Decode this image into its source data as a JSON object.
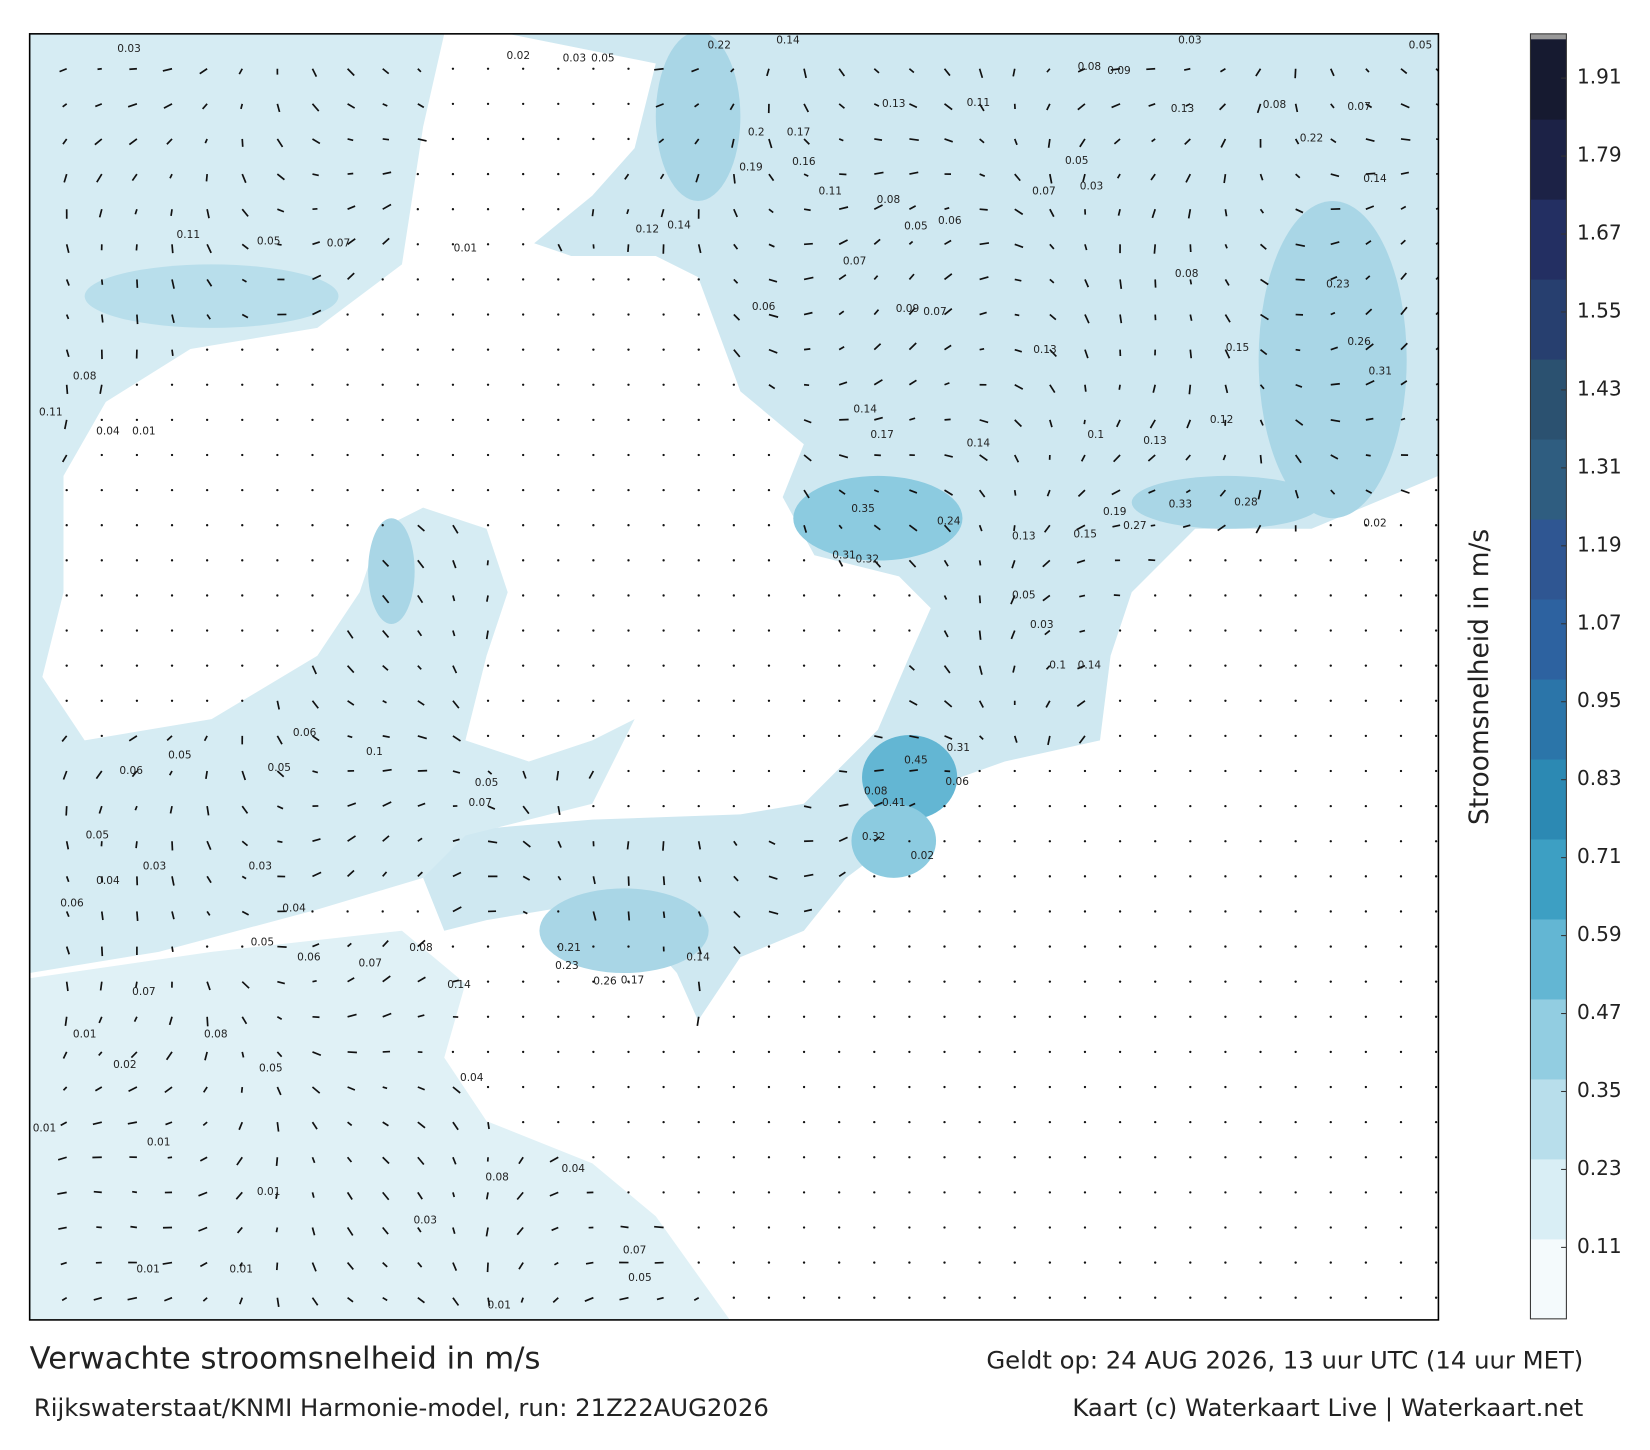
{
  "map": {
    "title": "Verwachte stroomsnelheid in m/s",
    "subtitle": "Rijkswaterstaat/KNMI Harmonie-model, run: 21Z22AUG2026",
    "valid_time": "Geldt op: 24 AUG 2026, 13 uur UTC (14 uur MET)",
    "credit": "Kaart (c) Waterkaart Live | Waterkaart.net",
    "colorbar": {
      "label": "Stroomsnelheid in m/s",
      "lim": [
        0,
        1.97
      ],
      "ticks": [
        0.11,
        0.23,
        0.35,
        0.47,
        0.59,
        0.71,
        0.83,
        0.95,
        1.07,
        1.19,
        1.31,
        1.43,
        1.55,
        1.67,
        1.79,
        1.91
      ],
      "colors": [
        "#f4fafc",
        "#d9eef5",
        "#b8deeb",
        "#92cde1",
        "#63b6d3",
        "#3d9fc3",
        "#2c89b3",
        "#2b75a9",
        "#2d62a0",
        "#2f5692",
        "#2f5d80",
        "#2b5170",
        "#273f6f",
        "#232f62",
        "#1c2246",
        "#161a30"
      ]
    },
    "point_labels": [
      0.03,
      0.02,
      0.03,
      0.05,
      0.22,
      0.14,
      0.03,
      0.05,
      0.08,
      0.09,
      0.13,
      0.11,
      0.2,
      0.17,
      0.13,
      0.08,
      0.07,
      0.22,
      0.14,
      0.05,
      0.07,
      0.03,
      0.11,
      0.08,
      0.05,
      0.06,
      0.14,
      0.12,
      0.19,
      0.16,
      0.11,
      0.05,
      0.07,
      0.01,
      0.07,
      0.08,
      0.23,
      0.06,
      0.09,
      0.07,
      0.13,
      0.15,
      0.26,
      0.31,
      0.14,
      0.17,
      0.1,
      0.13,
      0.12,
      0.14,
      0.35,
      0.24,
      0.13,
      0.15,
      0.19,
      0.27,
      0.33,
      0.28,
      0.02,
      0.31,
      0.32,
      0.05,
      0.03,
      0.14,
      0.1,
      0.45,
      0.31,
      0.06,
      0.08,
      0.41,
      0.32,
      0.02,
      0.14,
      0.17,
      0.26,
      0.14,
      0.21,
      0.23,
      0.07,
      0.01,
      0.01,
      0.01,
      0.01,
      0.01,
      0.01,
      0.07,
      0.05,
      0.04,
      0.08,
      0.04,
      0.03,
      0.05,
      0.02,
      0.01,
      0.08,
      0.05,
      0.06,
      0.07,
      0.08,
      0.04,
      0.05,
      0.04,
      0.06,
      0.03,
      0.03,
      0.06,
      0.06,
      0.05,
      0.05,
      0.1,
      0.05,
      0.07,
      0.11,
      0.04,
      0.01,
      0.08
    ]
  }
}
